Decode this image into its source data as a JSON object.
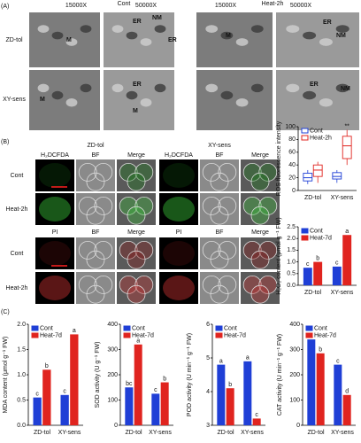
{
  "panel_labels": [
    "(A)",
    "(B)",
    "(C)"
  ],
  "panel_a": {
    "headers": [
      "15000X",
      "Cont",
      "50000X",
      "15000X",
      "Heat-2h",
      "50000X"
    ],
    "rows": [
      "ZD-tol",
      "XY-sens"
    ],
    "annotations": [
      "M",
      "ER",
      "NM",
      "ER",
      "M",
      "ER",
      "NM",
      "M",
      "ER",
      "M",
      "ER",
      "NM"
    ]
  },
  "panel_b": {
    "top_headers": [
      "H₂DCFDA",
      "ZD-tol",
      "BF",
      "Merge",
      "H₂DCFDA",
      "XY-sens",
      "BF",
      "Merge"
    ],
    "top_rows": [
      "Cont",
      "Heat-2h"
    ],
    "bottom_headers": [
      "PI",
      "BF",
      "Merge",
      "PI",
      "BF",
      "Merge"
    ],
    "bottom_rows": [
      "Cont",
      "Heat-2h"
    ]
  },
  "chart_data": [
    {
      "type": "box",
      "ylabel": "ROS fluorescence intensity",
      "categories": [
        "ZD-tol",
        "XY-sens"
      ],
      "ylim": [
        0,
        100
      ],
      "yticks": [
        0,
        20,
        40,
        60,
        80,
        100
      ],
      "annotation": "**",
      "series": [
        {
          "name": "Cont",
          "color": "#1f3fd6",
          "values": [
            {
              "min": 10,
              "q1": 15,
              "median": 20,
              "q3": 27,
              "max": 32
            },
            {
              "min": 12,
              "q1": 18,
              "median": 22,
              "q3": 28,
              "max": 32
            }
          ]
        },
        {
          "name": "Heat-2h",
          "color": "#e0241f",
          "values": [
            {
              "min": 12,
              "q1": 22,
              "median": 32,
              "q3": 40,
              "max": 45
            },
            {
              "min": 40,
              "q1": 50,
              "median": 70,
              "q3": 85,
              "max": 95
            }
          ]
        }
      ]
    },
    {
      "type": "bar",
      "ylabel": "H₂O₂ content (μmol g⁻¹ FW)",
      "categories": [
        "ZD-tol",
        "XY-sens"
      ],
      "ylim": [
        0,
        2.5
      ],
      "yticks": [
        {
          "value": 0,
          "label": "0.0"
        },
        0.5,
        {
          "value": 1,
          "label": "1.0"
        },
        1.5,
        {
          "value": 2,
          "label": "2.0"
        },
        2.5
      ],
      "series": [
        {
          "name": "Cont",
          "color": "#1f3fd6",
          "values": [
            0.75,
            0.8
          ],
          "letters": [
            "c",
            "c"
          ]
        },
        {
          "name": "Heat-7d",
          "color": "#e0241f",
          "values": [
            1.0,
            2.15
          ],
          "letters": [
            "b",
            "a"
          ]
        }
      ]
    },
    {
      "type": "bar",
      "ylabel": "MDA content (μmol g⁻¹ FW)",
      "categories": [
        "ZD-tol",
        "XY-sens"
      ],
      "ylim": [
        0,
        2
      ],
      "yticks": [
        {
          "value": 0,
          "label": "0.0"
        },
        0.5,
        {
          "value": 1,
          "label": "1.0"
        },
        1.5,
        {
          "value": 2,
          "label": "2.0"
        }
      ],
      "series": [
        {
          "name": "Cont",
          "color": "#1f3fd6",
          "values": [
            0.55,
            0.6
          ],
          "letters": [
            "c",
            "c"
          ]
        },
        {
          "name": "Heat-7d",
          "color": "#e0241f",
          "values": [
            1.1,
            1.8
          ],
          "letters": [
            "b",
            "a"
          ]
        }
      ]
    },
    {
      "type": "bar",
      "ylabel": "SOD activity (U g⁻¹ FW)",
      "categories": [
        "ZD-tol",
        "XY-sens"
      ],
      "ylim": [
        0,
        400
      ],
      "yticks": [
        0,
        100,
        200,
        300,
        400
      ],
      "series": [
        {
          "name": "Cont",
          "color": "#1f3fd6",
          "values": [
            150,
            125
          ],
          "letters": [
            "bc",
            "c"
          ]
        },
        {
          "name": "Heat-7d",
          "color": "#e0241f",
          "values": [
            320,
            170
          ],
          "letters": [
            "a",
            "b"
          ]
        }
      ]
    },
    {
      "type": "bar",
      "ylabel": "POD activity (U min⁻¹ g⁻¹ FW)",
      "categories": [
        "ZD-tol",
        "XY-sens"
      ],
      "ylim": [
        3,
        6
      ],
      "yticks": [
        3,
        4,
        5,
        6
      ],
      "series": [
        {
          "name": "Cont",
          "color": "#1f3fd6",
          "values": [
            4.8,
            4.9
          ],
          "letters": [
            "a",
            "a"
          ]
        },
        {
          "name": "Heat-7d",
          "color": "#e0241f",
          "values": [
            4.1,
            3.2
          ],
          "letters": [
            "b",
            "c"
          ]
        }
      ]
    },
    {
      "type": "bar",
      "ylabel": "CAT activity (U min⁻¹ g⁻¹ FW)",
      "categories": [
        "ZD-tol",
        "XY-sens"
      ],
      "ylim": [
        0,
        400
      ],
      "yticks": [
        0,
        100,
        200,
        300,
        400
      ],
      "series": [
        {
          "name": "Cont",
          "color": "#1f3fd6",
          "values": [
            340,
            240
          ],
          "letters": [
            "a",
            "c"
          ]
        },
        {
          "name": "Heat-7d",
          "color": "#e0241f",
          "values": [
            285,
            120
          ],
          "letters": [
            "b",
            "d"
          ]
        }
      ]
    }
  ]
}
